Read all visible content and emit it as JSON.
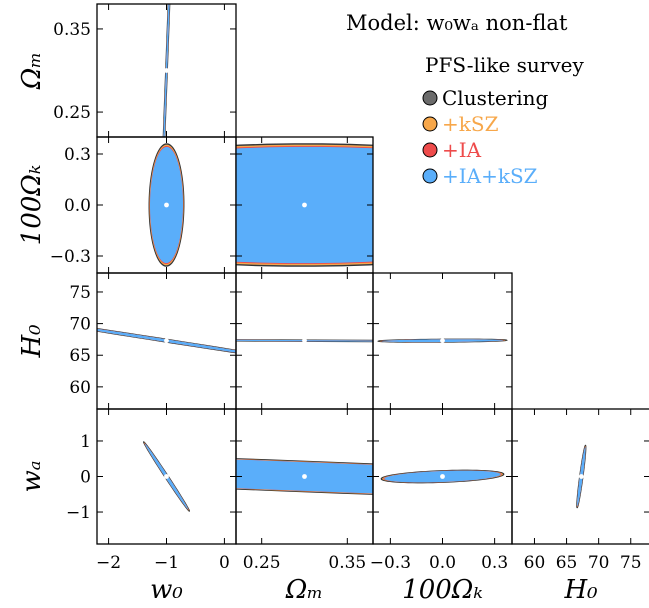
{
  "chart_data": {
    "type": "scatter",
    "title": "Model: w₀wₐ non-flat",
    "legend": {
      "title": "PFS-like survey",
      "placement": "top-right",
      "entries": [
        {
          "label": "Clustering",
          "color": "#6b6b6b",
          "text_color": "#000000"
        },
        {
          "label": "+kSZ",
          "color": "#f7a74a",
          "text_color": "#f7a74a"
        },
        {
          "label": "+IA",
          "color": "#ee4b4b",
          "text_color": "#ee4b4b"
        },
        {
          "label": "+IA+kSZ",
          "color": "#5aaefa",
          "text_color": "#5aaefa"
        }
      ]
    },
    "parameters": [
      {
        "key": "w0",
        "label": "w₀",
        "fiducial": -1.0,
        "range": [
          -2.2,
          0.2
        ],
        "ticks": [
          -2,
          -1,
          0
        ],
        "tick_labels": [
          "−2",
          "−1",
          "0"
        ]
      },
      {
        "key": "Om",
        "label": "Ωₘ",
        "fiducial": 0.3,
        "range": [
          0.22,
          0.38
        ],
        "ticks": [
          0.25,
          0.35
        ],
        "tick_labels": [
          "0.25",
          "0.35"
        ]
      },
      {
        "key": "OK",
        "label": "100Ωₖ",
        "fiducial": 0.0,
        "range": [
          -0.4,
          0.4
        ],
        "ticks": [
          -0.3,
          0.0,
          0.3
        ],
        "tick_labels": [
          "−0.3",
          "0.0",
          "0.3"
        ]
      },
      {
        "key": "H0",
        "label": "H₀",
        "fiducial": 67.3,
        "range": [
          56.5,
          78
        ],
        "ticks": [
          60,
          65,
          70,
          75
        ],
        "tick_labels": [
          "60",
          "65",
          "70",
          "75"
        ]
      },
      {
        "key": "wa",
        "label": "wₐ",
        "fiducial": 0.0,
        "range": [
          -1.9,
          1.9
        ],
        "ticks": [
          -1,
          0,
          1
        ],
        "tick_labels": [
          "−1",
          "0",
          "1"
        ]
      }
    ],
    "panels": [
      {
        "x": "w0",
        "y": "Om",
        "ellipses": [
          {
            "series": "Clustering",
            "semi_major": 0.48,
            "semi_minor": 0.012,
            "angle_deg": 62
          }
        ]
      },
      {
        "x": "w0",
        "y": "OK",
        "ellipses": [
          {
            "series": "Clustering",
            "semi_major": 0.36,
            "semi_minor": 0.3,
            "angle_deg": 88
          }
        ]
      },
      {
        "x": "Om",
        "y": "OK",
        "ellipses": [
          {
            "series": "Clustering",
            "semi_major": 0.36,
            "semi_minor": 0.37,
            "angle_deg": 97
          }
        ]
      },
      {
        "x": "w0",
        "y": "H0",
        "ellipses": [
          {
            "series": "Clustering",
            "semi_major": 4.3,
            "semi_minor": 0.13,
            "angle_deg": -55
          }
        ]
      },
      {
        "x": "Om",
        "y": "H0",
        "ellipses": [
          {
            "series": "Clustering",
            "semi_major": 4.4,
            "semi_minor": 0.08,
            "angle_deg": -33
          }
        ]
      },
      {
        "x": "OK",
        "y": "H0",
        "ellipses": [
          {
            "series": "Clustering",
            "semi_major": 0.38,
            "semi_minor": 0.22,
            "angle_deg": 17
          }
        ]
      },
      {
        "x": "w0",
        "y": "wa",
        "ellipses": [
          {
            "series": "Clustering",
            "semi_major": 1.05,
            "semi_minor": 0.03,
            "angle_deg": -68
          }
        ]
      },
      {
        "x": "Om",
        "y": "wa",
        "ellipses": [
          {
            "series": "Clustering",
            "semi_major": 1.1,
            "semi_minor": 0.3,
            "angle_deg": -48
          }
        ]
      },
      {
        "x": "OK",
        "y": "wa",
        "ellipses": [
          {
            "series": "Clustering",
            "semi_major": 0.36,
            "semi_minor": 0.16,
            "angle_deg": 13
          }
        ]
      },
      {
        "x": "H0",
        "y": "wa",
        "ellipses": [
          {
            "series": "Clustering",
            "semi_major": 1.1,
            "semi_minor": 0.2,
            "angle_deg": 52
          }
        ]
      }
    ]
  }
}
